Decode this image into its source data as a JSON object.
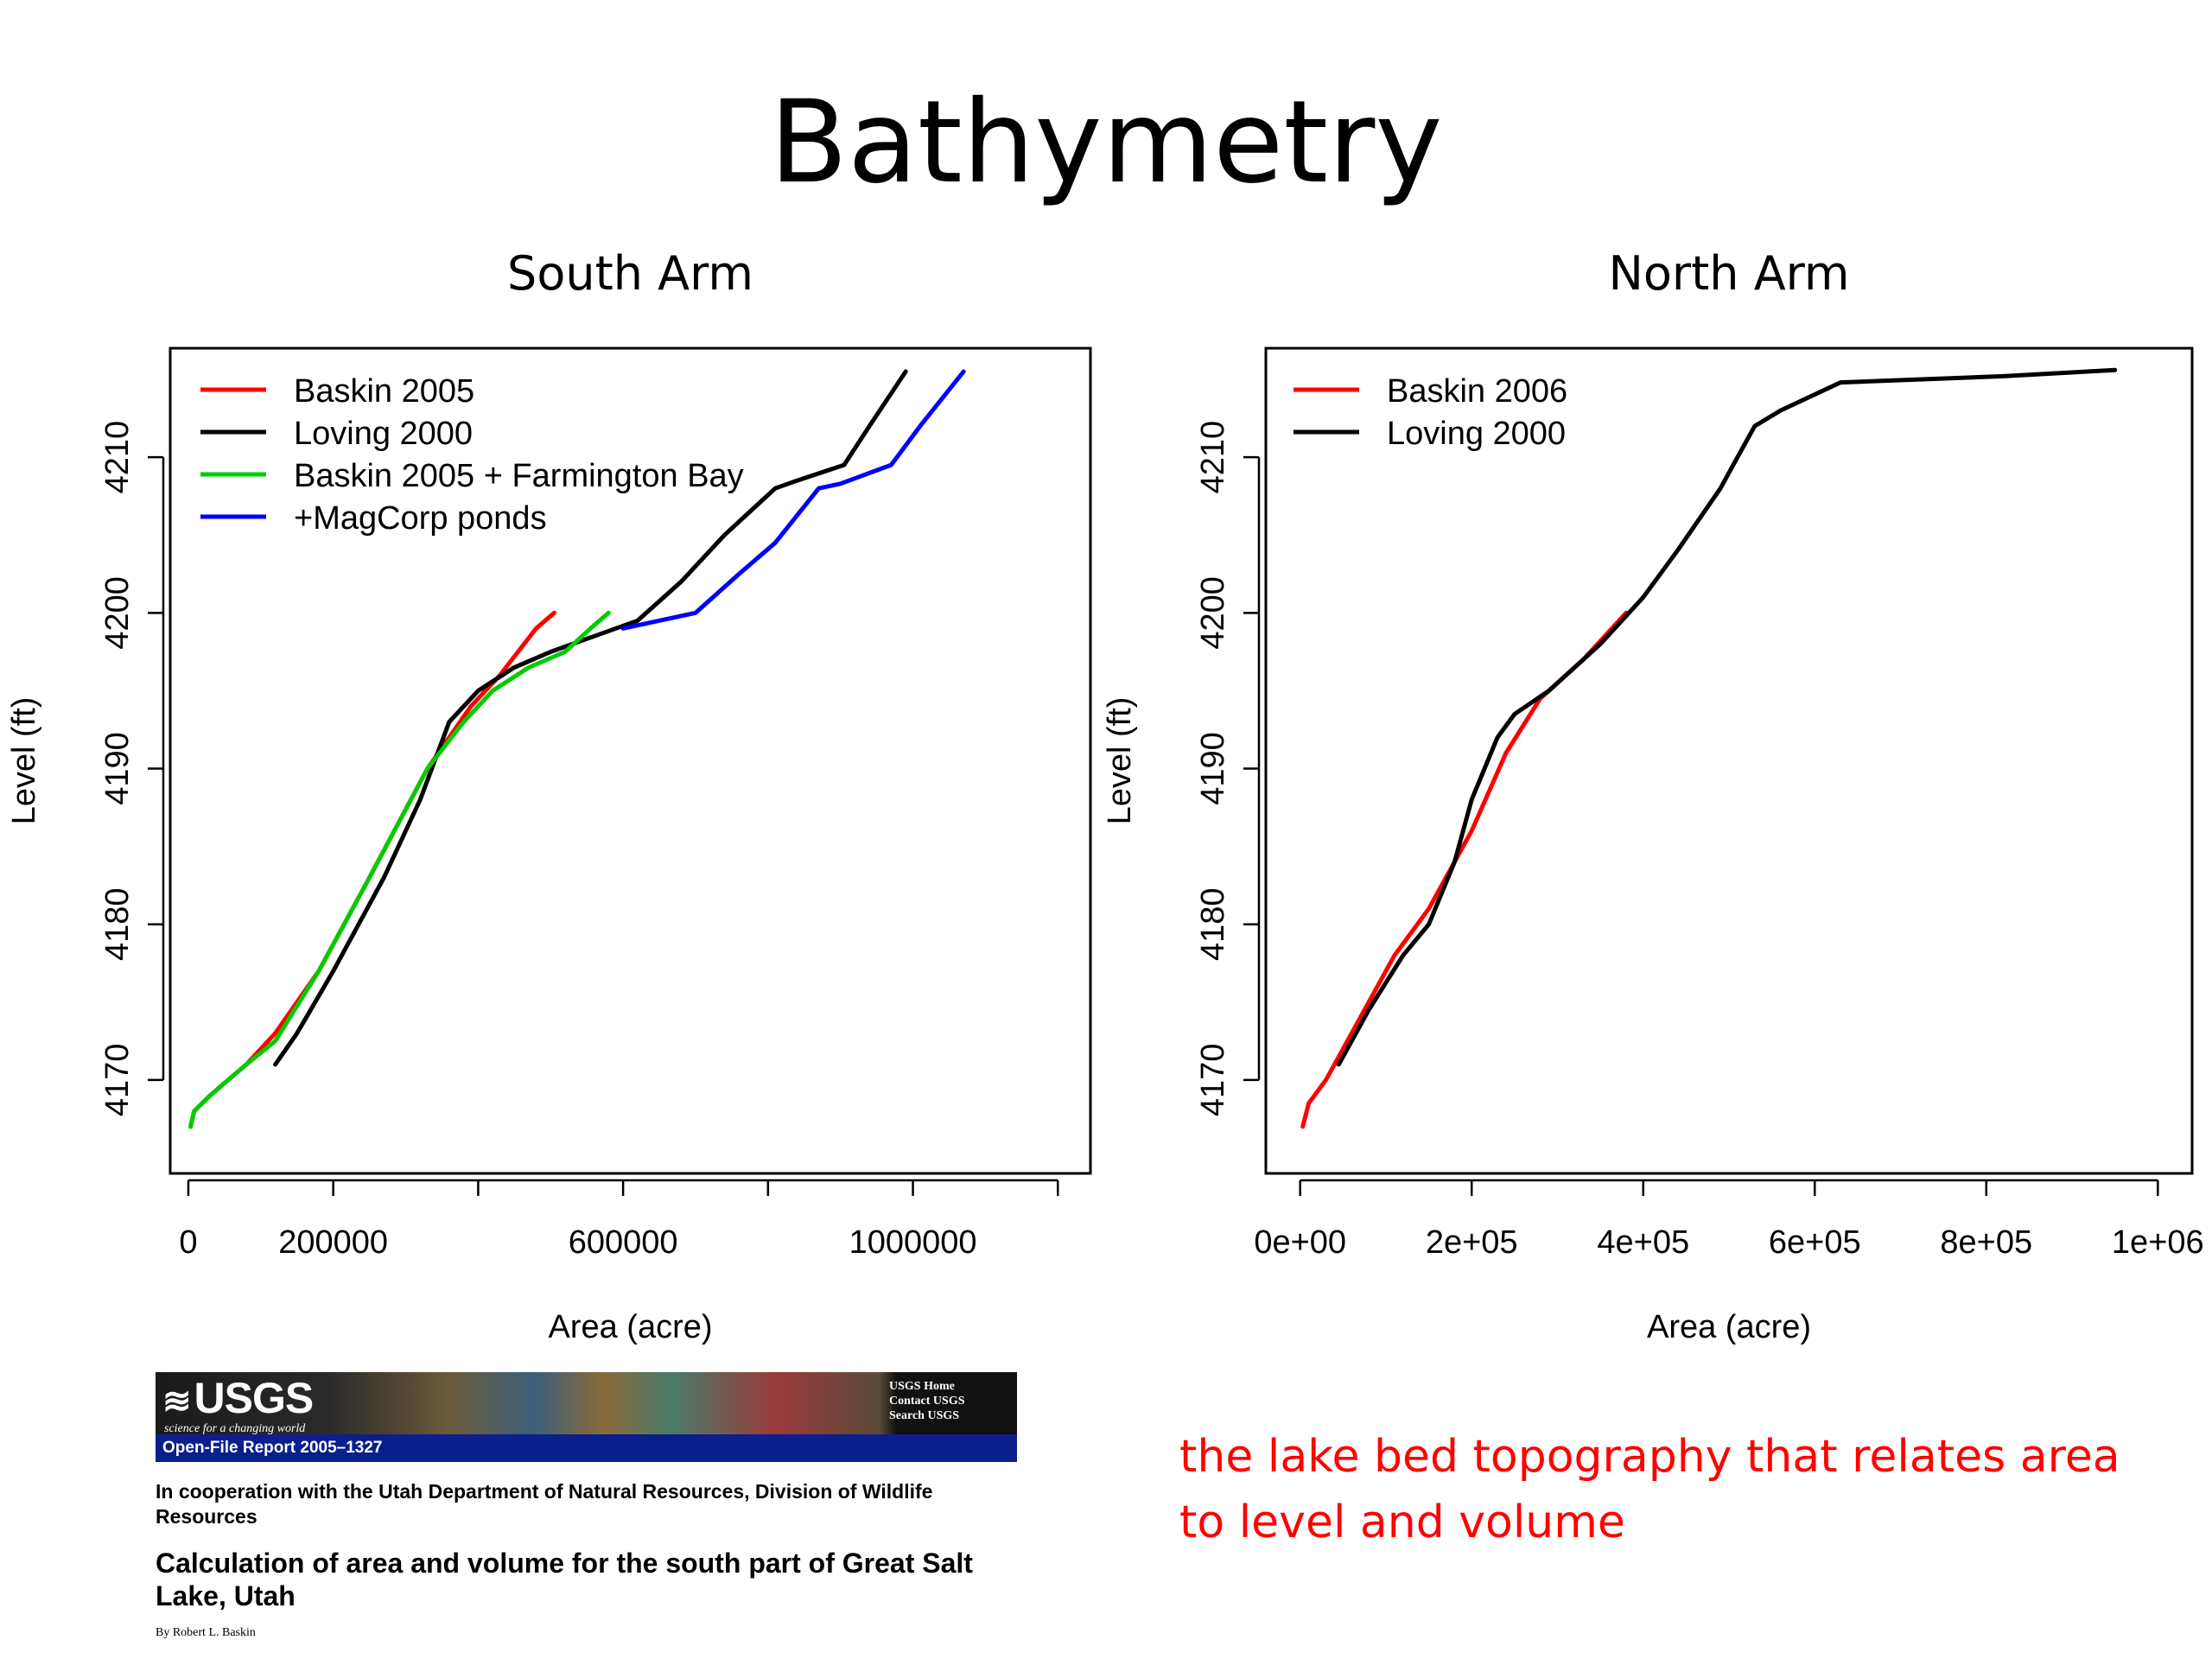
{
  "slide_title": "Bathymetry",
  "chart_data": [
    {
      "type": "line",
      "title": "South Arm",
      "xlabel": "Area (acre)",
      "ylabel": "Level (ft)",
      "xlim": [
        -25000,
        1245000
      ],
      "ylim": [
        4164,
        4217
      ],
      "x_ticks": [
        0,
        200000,
        400000,
        600000,
        800000,
        1000000,
        1200000
      ],
      "x_tick_labels": [
        "0",
        "200000",
        "",
        "600000",
        "",
        "1000000",
        ""
      ],
      "y_ticks": [
        4170,
        4180,
        4190,
        4200,
        4210
      ],
      "y_tick_labels": [
        "4170",
        "4180",
        "4190",
        "4200",
        "4210"
      ],
      "legend_position": "top-left",
      "series": [
        {
          "name": "Baskin 2005",
          "color": "#ff0000",
          "points": [
            [
              3000,
              4167
            ],
            [
              8000,
              4168
            ],
            [
              30000,
              4169
            ],
            [
              80000,
              4171
            ],
            [
              120000,
              4173
            ],
            [
              180000,
              4177
            ],
            [
              250000,
              4183
            ],
            [
              330000,
              4190
            ],
            [
              390000,
              4194
            ],
            [
              430000,
              4196
            ],
            [
              455000,
              4197.5
            ],
            [
              480000,
              4199
            ],
            [
              505000,
              4200
            ]
          ]
        },
        {
          "name": "Loving 2000",
          "color": "#000000",
          "points": [
            [
              120000,
              4171
            ],
            [
              150000,
              4173
            ],
            [
              200000,
              4177
            ],
            [
              270000,
              4183
            ],
            [
              320000,
              4188
            ],
            [
              360000,
              4193
            ],
            [
              400000,
              4195
            ],
            [
              450000,
              4196.5
            ],
            [
              500000,
              4197.5
            ],
            [
              560000,
              4198.5
            ],
            [
              620000,
              4199.5
            ],
            [
              680000,
              4202
            ],
            [
              740000,
              4205
            ],
            [
              810000,
              4208
            ],
            [
              840000,
              4208.5
            ],
            [
              905000,
              4209.5
            ],
            [
              940000,
              4212
            ],
            [
              990000,
              4215.5
            ]
          ]
        },
        {
          "name": "Baskin 2005 + Farmington Bay",
          "color": "#00cc00",
          "points": [
            [
              3000,
              4167
            ],
            [
              8000,
              4168
            ],
            [
              30000,
              4169
            ],
            [
              80000,
              4171
            ],
            [
              120000,
              4172.5
            ],
            [
              180000,
              4177
            ],
            [
              250000,
              4183
            ],
            [
              330000,
              4190
            ],
            [
              380000,
              4193
            ],
            [
              420000,
              4195
            ],
            [
              470000,
              4196.5
            ],
            [
              520000,
              4197.5
            ],
            [
              555000,
              4199
            ],
            [
              580000,
              4200
            ]
          ]
        },
        {
          "name": "+MagCorp ponds",
          "color": "#0000ff",
          "points": [
            [
              600000,
              4199
            ],
            [
              650000,
              4199.5
            ],
            [
              700000,
              4200
            ],
            [
              760000,
              4202.5
            ],
            [
              810000,
              4204.5
            ],
            [
              870000,
              4208
            ],
            [
              900000,
              4208.3
            ],
            [
              970000,
              4209.5
            ],
            [
              1010000,
              4212
            ],
            [
              1070000,
              4215.5
            ]
          ]
        }
      ]
    },
    {
      "type": "line",
      "title": "North Arm",
      "xlabel": "Area (acre)",
      "ylabel": "Level (ft)",
      "xlim": [
        -40000,
        1040000
      ],
      "ylim": [
        4164,
        4217
      ],
      "x_ticks": [
        0,
        200000,
        400000,
        600000,
        800000,
        1000000
      ],
      "x_tick_labels": [
        "0e+00",
        "2e+05",
        "4e+05",
        "6e+05",
        "8e+05",
        "1e+06"
      ],
      "y_ticks": [
        4170,
        4180,
        4190,
        4200,
        4210
      ],
      "y_tick_labels": [
        "4170",
        "4180",
        "4190",
        "4200",
        "4210"
      ],
      "legend_position": "top-left",
      "series": [
        {
          "name": "Baskin 2006",
          "color": "#ff0000",
          "points": [
            [
              3000,
              4167
            ],
            [
              10000,
              4168.5
            ],
            [
              30000,
              4170
            ],
            [
              70000,
              4174
            ],
            [
              110000,
              4178
            ],
            [
              150000,
              4181
            ],
            [
              200000,
              4186
            ],
            [
              240000,
              4191
            ],
            [
              280000,
              4194.5
            ],
            [
              330000,
              4197
            ],
            [
              380000,
              4200
            ]
          ]
        },
        {
          "name": "Loving 2000",
          "color": "#000000",
          "points": [
            [
              45000,
              4171
            ],
            [
              80000,
              4174.5
            ],
            [
              120000,
              4178
            ],
            [
              150000,
              4180
            ],
            [
              180000,
              4184
            ],
            [
              200000,
              4188
            ],
            [
              230000,
              4192
            ],
            [
              250000,
              4193.5
            ],
            [
              290000,
              4195
            ],
            [
              350000,
              4198
            ],
            [
              400000,
              4201
            ],
            [
              440000,
              4204
            ],
            [
              490000,
              4208
            ],
            [
              510000,
              4210
            ],
            [
              530000,
              4212
            ],
            [
              560000,
              4213
            ],
            [
              630000,
              4214.8
            ],
            [
              820000,
              4215.2
            ],
            [
              950000,
              4215.6
            ]
          ]
        }
      ]
    }
  ],
  "report": {
    "usgs_logo": "USGS",
    "usgs_tagline": "science for a changing world",
    "usgs_links": [
      "USGS Home",
      "Contact USGS",
      "Search USGS"
    ],
    "ofr_label": "Open-File Report 2005–1327",
    "cooperation": "In cooperation with the Utah Department of Natural Resources, Division of Wildlife Resources",
    "title": "Calculation of area and volume for the south part of Great Salt Lake, Utah",
    "byline": "By Robert L. Baskin"
  },
  "caption": "the lake bed topography that relates area to level and volume"
}
